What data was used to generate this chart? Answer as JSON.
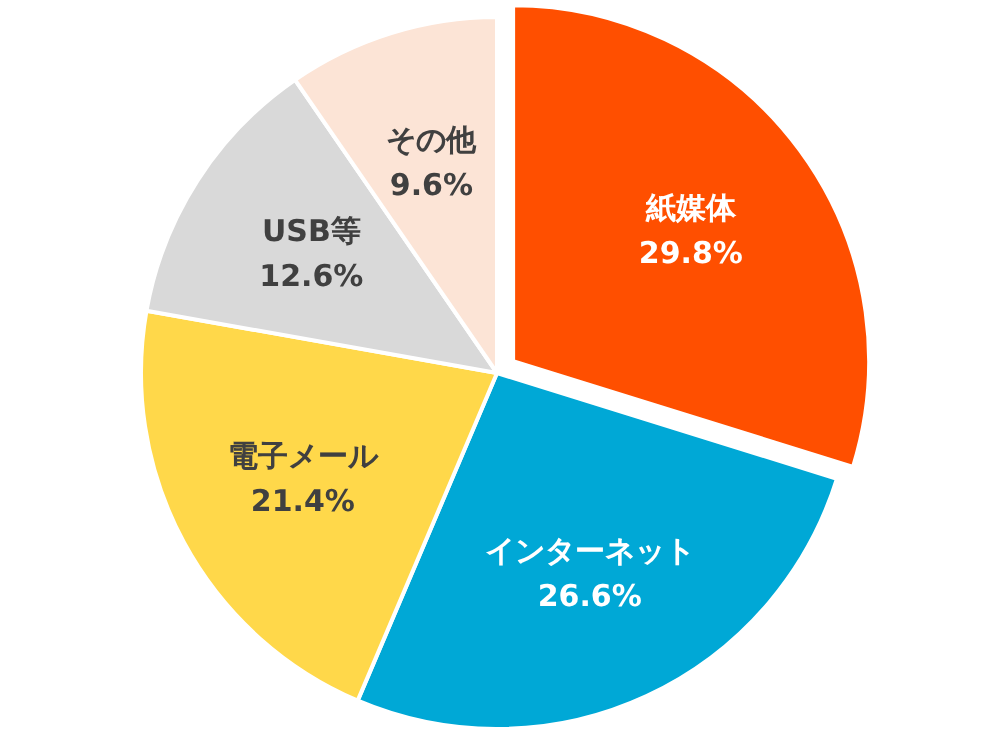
{
  "chart_data": {
    "type": "pie",
    "categories": [
      "紙媒体",
      "インターネット",
      "電子メール",
      "USB等",
      "その他"
    ],
    "values": [
      29.8,
      26.6,
      21.4,
      12.6,
      9.6
    ],
    "colors": [
      "#ff4f00",
      "#00a8d6",
      "#ffd84a",
      "#d9d9d9",
      "#fce4d6"
    ],
    "value_labels": [
      "29.8%",
      "26.6%",
      "21.4%",
      "12.6%",
      "9.6%"
    ]
  }
}
